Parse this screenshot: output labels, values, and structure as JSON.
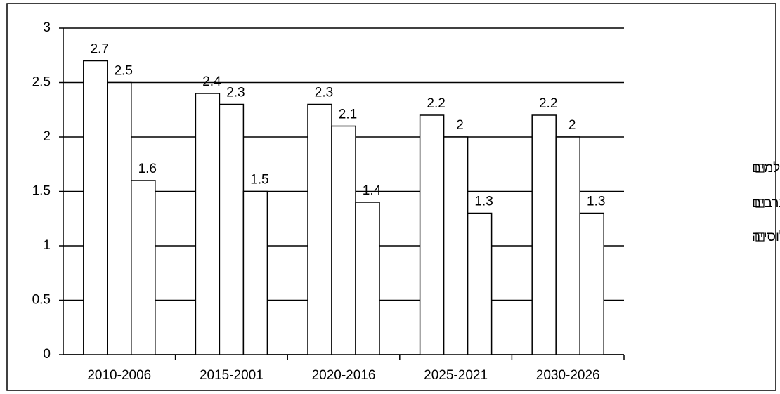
{
  "chart_data": {
    "type": "bar",
    "categories": [
      "2010-2006",
      "2015-2001",
      "2020-2016",
      "2025-2021",
      "2030-2026"
    ],
    "series": [
      {
        "name": "מוסלמים",
        "color": "#ffffff",
        "values": [
          2.7,
          2.4,
          2.3,
          2.2,
          2.2
        ]
      },
      {
        "name": "ערבים",
        "color": "#ffffff",
        "values": [
          2.5,
          2.3,
          2.1,
          2,
          2
        ]
      },
      {
        "name": "כל האוכלוסייה",
        "color": "#ffffff",
        "values": [
          1.6,
          1.5,
          1.4,
          1.3,
          1.3
        ]
      }
    ],
    "ylim": [
      0,
      3
    ],
    "yticks": [
      0,
      0.5,
      1,
      1.5,
      2,
      2.5,
      3
    ],
    "grid": true,
    "legend": "right"
  }
}
